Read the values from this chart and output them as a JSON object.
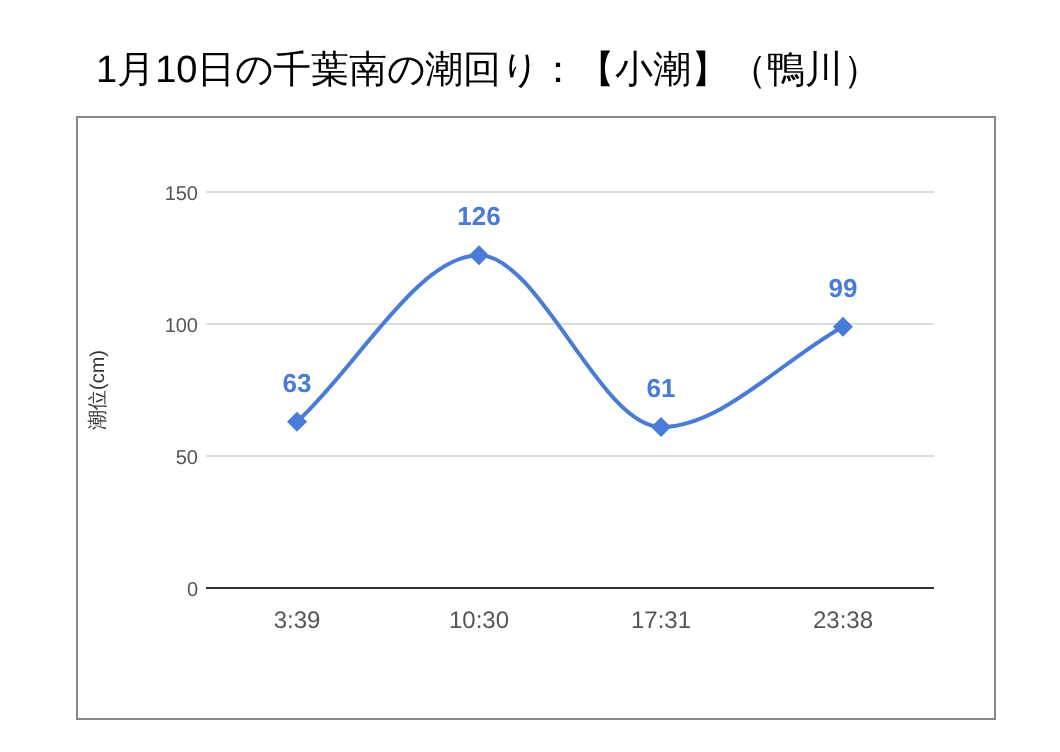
{
  "chart_data": {
    "type": "line",
    "title": "1月10日の千葉南の潮回り：【小潮】（鴨川）",
    "ylabel": "潮位(cm)",
    "categories": [
      "3:39",
      "10:30",
      "17:31",
      "23:38"
    ],
    "series": [
      {
        "color": "#4a7bd6",
        "values": [
          63,
          126,
          61,
          99
        ]
      }
    ],
    "ylim": [
      0,
      150
    ],
    "yticks": [
      0,
      50,
      100,
      150
    ],
    "grid": "y",
    "marker": "diamond",
    "line_style": "solid",
    "data_labels": true
  }
}
